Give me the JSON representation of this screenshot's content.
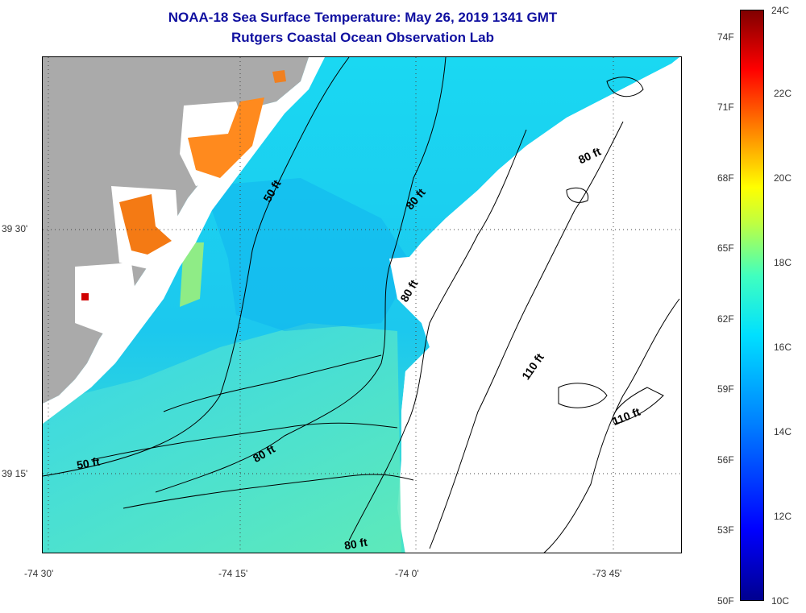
{
  "title": {
    "line1": "NOAA-18 Sea Surface Temperature:  May 26, 2019 1341 GMT",
    "line2": "Rutgers Coastal Ocean Observation Lab"
  },
  "axes": {
    "lon_ticks": [
      "-74 30'",
      "-74 15'",
      "-74 0'",
      "-73 45'"
    ],
    "lat_ticks": [
      "39 30'",
      "39 15'"
    ]
  },
  "contours": {
    "c50a": "50 ft",
    "c50b": "50 ft",
    "c80a": "80 ft",
    "c80b": "80 ft",
    "c80c": "80 ft",
    "c80d": "80 ft",
    "c80e": "80 ft",
    "c110a": "110 ft",
    "c110b": "110 ft"
  },
  "colorbar": {
    "celsius": [
      "24C",
      "22C",
      "20C",
      "18C",
      "16C",
      "14C",
      "12C",
      "10C"
    ],
    "fahrenheit": [
      "74F",
      "71F",
      "68F",
      "65F",
      "62F",
      "59F",
      "56F",
      "53F",
      "50F"
    ]
  },
  "colors": {
    "land": "#aaaaaa",
    "ocean_cool": "#18d2f0",
    "ocean_warm": "#46e6c0",
    "cloud": "#ffffff",
    "warm_inland": "#ff8a1e",
    "title_color": "#1010a0"
  }
}
